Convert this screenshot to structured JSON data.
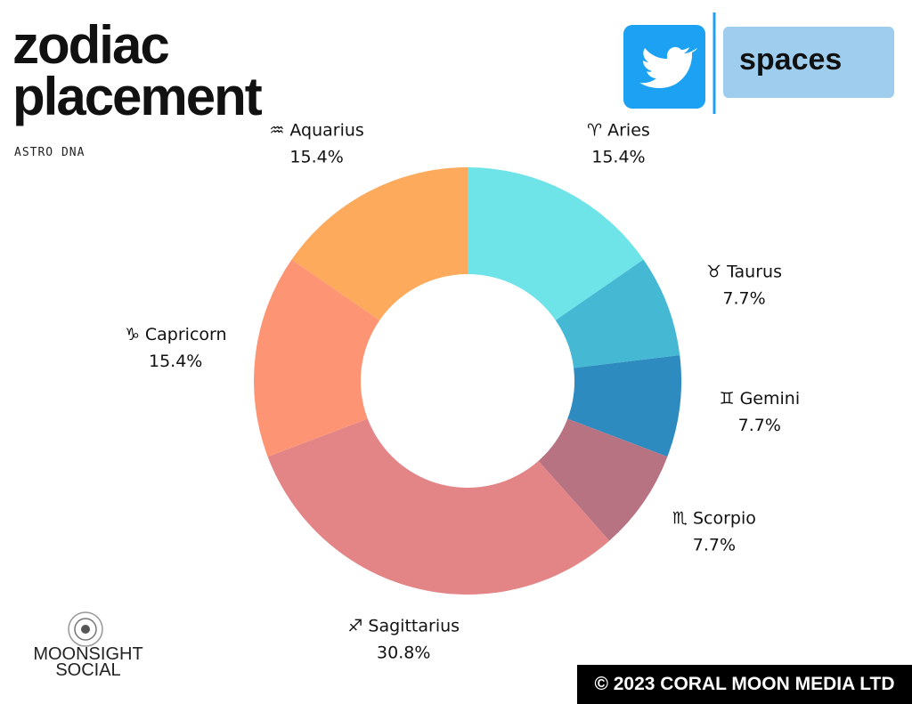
{
  "chart_data": {
    "type": "donut",
    "title": "zodiac placement",
    "subtitle": "ASTRO DNA",
    "categories": [
      "♈ Aries",
      "♉ Taurus",
      "♊ Gemini",
      "♏ Scorpio",
      "♐ Sagittarius",
      "♑ Capricorn",
      "♒ Aquarius"
    ],
    "values": [
      15.4,
      7.7,
      7.7,
      7.7,
      30.8,
      15.4,
      15.4
    ],
    "value_labels": [
      "15.4%",
      "7.7%",
      "7.7%",
      "7.7%",
      "30.8%",
      "15.4%",
      "15.4%"
    ],
    "colors": [
      "#6ee3e8",
      "#45b8d4",
      "#2e8bbf",
      "#b87383",
      "#e38486",
      "#fd9574",
      "#fdaa5c"
    ],
    "annotations": {
      "badge": "spaces",
      "brand": "MOONSIGHT SOCIAL",
      "copyright": "© 2023 CORAL MOON MEDIA LTD"
    }
  }
}
